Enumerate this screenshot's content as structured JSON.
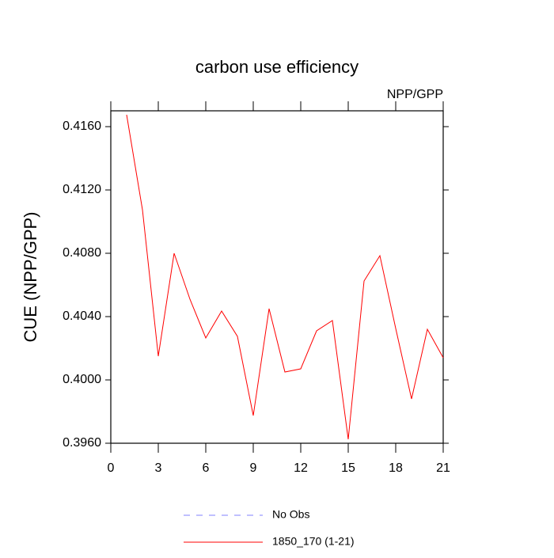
{
  "chart_data": {
    "type": "line",
    "title": "carbon use efficiency",
    "subtitle": "NPP/GPP",
    "y_label": "CUE  (NPP/GPP)",
    "x": [
      1,
      2,
      3,
      4,
      5,
      6,
      7,
      8,
      9,
      10,
      11,
      12,
      13,
      14,
      15,
      16,
      17,
      18,
      19,
      20,
      21
    ],
    "series": [
      {
        "name": "No Obs",
        "color": "#8080ff",
        "dashed": true,
        "values": [
          null,
          null,
          null,
          null,
          null,
          null,
          null,
          null,
          null,
          null,
          null,
          null,
          null,
          null,
          null,
          null,
          null,
          null,
          null,
          null,
          null
        ]
      },
      {
        "name": "1850_170 (1-21)",
        "color": "#ff0000",
        "dashed": false,
        "values": [
          0.41675,
          0.41075,
          0.4015,
          0.408,
          0.4051,
          0.40265,
          0.40435,
          0.40275,
          0.39775,
          0.4045,
          0.4005,
          0.4007,
          0.4031,
          0.40375,
          0.39625,
          0.40625,
          0.40785,
          0.40325,
          0.3988,
          0.4032,
          0.4014
        ]
      }
    ],
    "xlim": [
      0,
      21
    ],
    "xticks": [
      0,
      3,
      6,
      9,
      12,
      15,
      18,
      21
    ],
    "ylim": [
      0.396,
      0.417
    ],
    "yticks": [
      {
        "value": 0.396,
        "label": "0.3960"
      },
      {
        "value": 0.4,
        "label": "0.4000"
      },
      {
        "value": 0.404,
        "label": "0.4040"
      },
      {
        "value": 0.408,
        "label": "0.4080"
      },
      {
        "value": 0.412,
        "label": "0.4120"
      },
      {
        "value": 0.416,
        "label": "0.4160"
      }
    ]
  }
}
